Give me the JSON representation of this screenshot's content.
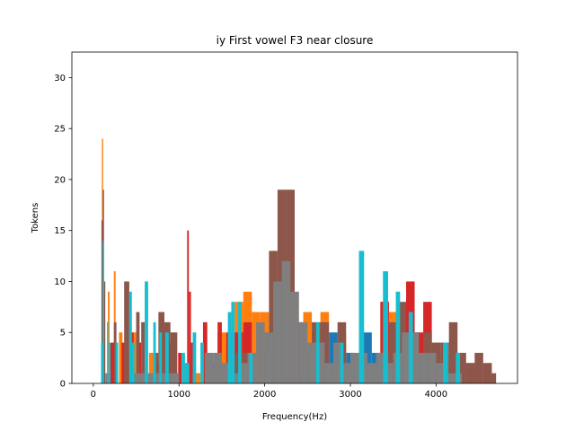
{
  "chart_data": {
    "type": "bar",
    "subtype": "overlaid-histogram",
    "title": "iy First vowel F3 near closure",
    "xlabel": "Frequency(Hz)",
    "ylabel": "Tokens",
    "xlim": [
      -250,
      4950
    ],
    "ylim": [
      0,
      32.5
    ],
    "xticks": [
      0,
      1000,
      2000,
      3000,
      4000
    ],
    "yticks": [
      0,
      5,
      10,
      15,
      20,
      25,
      30
    ],
    "grid": false,
    "legend": "none",
    "series": [
      {
        "color": "#1f77b4",
        "bins": [
          [
            1850,
            1950,
            1
          ],
          [
            1950,
            2050,
            5
          ],
          [
            2050,
            2150,
            1
          ],
          [
            2150,
            2250,
            1
          ],
          [
            2250,
            2350,
            2
          ],
          [
            2350,
            2450,
            1
          ],
          [
            2450,
            2550,
            2
          ],
          [
            2550,
            2650,
            3
          ],
          [
            2650,
            2750,
            2
          ],
          [
            2750,
            2850,
            5
          ],
          [
            2850,
            2950,
            4
          ],
          [
            2950,
            3050,
            3
          ],
          [
            3050,
            3150,
            2
          ],
          [
            3150,
            3250,
            5
          ],
          [
            3250,
            3350,
            3
          ],
          [
            3350,
            3450,
            3
          ]
        ]
      },
      {
        "color": "#ff7f0e",
        "bins": [
          [
            100,
            115,
            24
          ],
          [
            120,
            135,
            4
          ],
          [
            170,
            190,
            9
          ],
          [
            240,
            260,
            11
          ],
          [
            300,
            340,
            5
          ],
          [
            390,
            420,
            3
          ],
          [
            460,
            500,
            5
          ],
          [
            560,
            600,
            6
          ],
          [
            650,
            700,
            3
          ],
          [
            700,
            780,
            2
          ],
          [
            850,
            900,
            3
          ],
          [
            1050,
            1150,
            2
          ],
          [
            1150,
            1250,
            1
          ],
          [
            1450,
            1550,
            5
          ],
          [
            1550,
            1650,
            4
          ],
          [
            1650,
            1750,
            8
          ],
          [
            1750,
            1850,
            9
          ],
          [
            1850,
            1950,
            7
          ],
          [
            1950,
            2050,
            7
          ],
          [
            2050,
            2150,
            3
          ],
          [
            2450,
            2550,
            7
          ],
          [
            2550,
            2650,
            5
          ],
          [
            2650,
            2750,
            7
          ],
          [
            2850,
            2950,
            5
          ],
          [
            3350,
            3450,
            8
          ],
          [
            3450,
            3550,
            7
          ],
          [
            3550,
            3650,
            5
          ],
          [
            3650,
            3750,
            5
          ],
          [
            3750,
            3850,
            4
          ],
          [
            3850,
            3950,
            5
          ],
          [
            3950,
            4050,
            4
          ],
          [
            4050,
            4150,
            3
          ],
          [
            4150,
            4250,
            2
          ],
          [
            4250,
            4350,
            2
          ],
          [
            4450,
            4550,
            2
          ],
          [
            4600,
            4650,
            2
          ]
        ]
      },
      {
        "color": "#d62728",
        "bins": [
          [
            200,
            260,
            4
          ],
          [
            330,
            370,
            4
          ],
          [
            430,
            470,
            5
          ],
          [
            520,
            560,
            4
          ],
          [
            860,
            920,
            4
          ],
          [
            990,
            1030,
            3
          ],
          [
            1095,
            1115,
            15
          ],
          [
            1115,
            1140,
            9
          ],
          [
            1140,
            1190,
            4
          ],
          [
            1280,
            1330,
            6
          ],
          [
            1450,
            1500,
            6
          ],
          [
            1550,
            1750,
            5
          ],
          [
            1750,
            1850,
            6
          ],
          [
            2350,
            2450,
            4
          ],
          [
            2550,
            2650,
            5
          ],
          [
            3350,
            3450,
            8
          ],
          [
            3450,
            3550,
            5
          ],
          [
            3650,
            3750,
            10
          ],
          [
            3750,
            3850,
            5
          ],
          [
            3850,
            3950,
            8
          ],
          [
            4350,
            4450,
            2
          ]
        ]
      },
      {
        "color": "#8c564b",
        "bins": [
          [
            95,
            110,
            16
          ],
          [
            110,
            125,
            19
          ],
          [
            125,
            140,
            10
          ],
          [
            240,
            270,
            6
          ],
          [
            360,
            420,
            10
          ],
          [
            500,
            540,
            7
          ],
          [
            560,
            600,
            6
          ],
          [
            700,
            760,
            3
          ],
          [
            760,
            830,
            7
          ],
          [
            830,
            900,
            6
          ],
          [
            900,
            980,
            5
          ],
          [
            1350,
            1450,
            2
          ],
          [
            1650,
            1750,
            3
          ],
          [
            1750,
            1850,
            3
          ],
          [
            1950,
            2050,
            3
          ],
          [
            2050,
            2150,
            13
          ],
          [
            2150,
            2250,
            19
          ],
          [
            2250,
            2350,
            19
          ],
          [
            2350,
            2450,
            6
          ],
          [
            2450,
            2550,
            3
          ],
          [
            2550,
            2650,
            6
          ],
          [
            2650,
            2750,
            6
          ],
          [
            2850,
            2950,
            6
          ],
          [
            3350,
            3450,
            3
          ],
          [
            3450,
            3550,
            6
          ],
          [
            3550,
            3650,
            8
          ],
          [
            3650,
            3750,
            5
          ],
          [
            3850,
            3950,
            5
          ],
          [
            3950,
            4050,
            4
          ],
          [
            4050,
            4150,
            4
          ],
          [
            4150,
            4250,
            6
          ],
          [
            4250,
            4350,
            3
          ],
          [
            4350,
            4450,
            2
          ],
          [
            4450,
            4550,
            3
          ],
          [
            4550,
            4650,
            2
          ],
          [
            4650,
            4700,
            1
          ]
        ]
      },
      {
        "color": "#7f7f7f",
        "bins": [
          [
            140,
            200,
            1
          ],
          [
            450,
            550,
            1
          ],
          [
            550,
            700,
            1
          ],
          [
            700,
            800,
            1
          ],
          [
            800,
            900,
            1
          ],
          [
            900,
            1000,
            1
          ],
          [
            1300,
            1400,
            3
          ],
          [
            1400,
            1500,
            3
          ],
          [
            1500,
            1600,
            2
          ],
          [
            1600,
            1700,
            1
          ],
          [
            1700,
            1800,
            2
          ],
          [
            1800,
            1900,
            3
          ],
          [
            1900,
            2000,
            6
          ],
          [
            2000,
            2100,
            5
          ],
          [
            2100,
            2200,
            10
          ],
          [
            2200,
            2300,
            12
          ],
          [
            2300,
            2400,
            9
          ],
          [
            2400,
            2500,
            6
          ],
          [
            2500,
            2600,
            4
          ],
          [
            2600,
            2700,
            4
          ],
          [
            2700,
            2800,
            2
          ],
          [
            2800,
            2900,
            4
          ],
          [
            2900,
            3000,
            2
          ],
          [
            3000,
            3100,
            3
          ],
          [
            3100,
            3200,
            3
          ],
          [
            3200,
            3300,
            2
          ],
          [
            3300,
            3400,
            3
          ],
          [
            3400,
            3500,
            2
          ],
          [
            3500,
            3600,
            3
          ],
          [
            3600,
            3700,
            5
          ],
          [
            3700,
            3800,
            5
          ],
          [
            3800,
            3900,
            3
          ],
          [
            3900,
            4000,
            3
          ],
          [
            4000,
            4100,
            2
          ],
          [
            4100,
            4200,
            1
          ],
          [
            4200,
            4300,
            1
          ]
        ]
      },
      {
        "color": "#17becf",
        "bins": [
          [
            90,
            110,
            4
          ],
          [
            110,
            125,
            14
          ],
          [
            160,
            175,
            6
          ],
          [
            180,
            200,
            4
          ],
          [
            260,
            290,
            4
          ],
          [
            420,
            450,
            9
          ],
          [
            450,
            480,
            4
          ],
          [
            600,
            640,
            10
          ],
          [
            700,
            730,
            6
          ],
          [
            770,
            800,
            5
          ],
          [
            840,
            880,
            5
          ],
          [
            1030,
            1070,
            3
          ],
          [
            1070,
            1120,
            2
          ],
          [
            1160,
            1200,
            5
          ],
          [
            1250,
            1290,
            4
          ],
          [
            1570,
            1610,
            7
          ],
          [
            1610,
            1650,
            8
          ],
          [
            1690,
            1730,
            8
          ],
          [
            1820,
            1860,
            3
          ],
          [
            2600,
            2640,
            6
          ],
          [
            2880,
            2920,
            4
          ],
          [
            3100,
            3160,
            13
          ],
          [
            3380,
            3440,
            11
          ],
          [
            3530,
            3580,
            9
          ],
          [
            3680,
            3730,
            7
          ],
          [
            4080,
            4140,
            4
          ],
          [
            4230,
            4280,
            3
          ]
        ]
      }
    ]
  }
}
